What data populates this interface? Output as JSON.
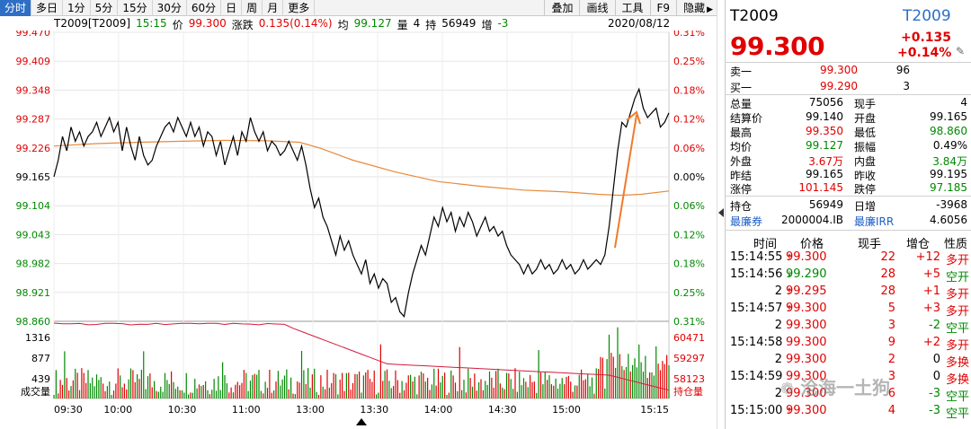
{
  "toolbar": {
    "timeframes": [
      "分时",
      "多日",
      "1分",
      "5分",
      "15分",
      "30分",
      "60分",
      "日",
      "周",
      "月",
      "更多"
    ],
    "active": "分时",
    "right": [
      "叠加",
      "画线",
      "工具",
      "F9",
      "隐藏"
    ]
  },
  "info": {
    "name": "T2009[T2009]",
    "time": "15:15",
    "price_label": "价",
    "price": "99.300",
    "change_label": "涨跌",
    "change": "0.135(0.14%)",
    "avg_label": "均",
    "avg": "99.127",
    "vol_label": "量",
    "vol": "4",
    "hold_label": "持",
    "hold": "56949",
    "inc_label": "增",
    "inc": "-3",
    "date": "2020/08/12"
  },
  "chart_data": {
    "type": "line",
    "price_ticks": [
      "99.470",
      "99.409",
      "99.348",
      "99.287",
      "99.226",
      "99.165",
      "99.104",
      "99.043",
      "98.982",
      "98.921",
      "98.860"
    ],
    "pct_ticks": [
      "0.31%",
      "0.25%",
      "0.18%",
      "0.12%",
      "0.06%",
      "0.00%",
      "0.06%",
      "0.12%",
      "0.18%",
      "0.25%",
      "0.31%"
    ],
    "vol_ticks": [
      "1316",
      "877",
      "439",
      "成交量"
    ],
    "oi_ticks": [
      "60471",
      "59297",
      "58123",
      "持仓量"
    ],
    "time_ticks": [
      "09:30",
      "10:00",
      "10:30",
      "11:00",
      "13:00",
      "13:30",
      "14:00",
      "14:30",
      "15:00",
      "15:15"
    ],
    "ylim": [
      98.86,
      99.47
    ],
    "price_series": [
      [
        0,
        99.165
      ],
      [
        2,
        99.2
      ],
      [
        4,
        99.25
      ],
      [
        6,
        99.22
      ],
      [
        8,
        99.27
      ],
      [
        10,
        99.24
      ],
      [
        12,
        99.26
      ],
      [
        14,
        99.23
      ],
      [
        16,
        99.25
      ],
      [
        18,
        99.26
      ],
      [
        20,
        99.28
      ],
      [
        22,
        99.25
      ],
      [
        24,
        99.27
      ],
      [
        26,
        99.29
      ],
      [
        28,
        99.26
      ],
      [
        30,
        99.28
      ],
      [
        32,
        99.22
      ],
      [
        34,
        99.27
      ],
      [
        36,
        99.23
      ],
      [
        38,
        99.2
      ],
      [
        40,
        99.25
      ],
      [
        42,
        99.21
      ],
      [
        44,
        99.19
      ],
      [
        46,
        99.2
      ],
      [
        48,
        99.23
      ],
      [
        50,
        99.25
      ],
      [
        52,
        99.27
      ],
      [
        54,
        99.28
      ],
      [
        56,
        99.26
      ],
      [
        58,
        99.29
      ],
      [
        60,
        99.27
      ],
      [
        62,
        99.25
      ],
      [
        64,
        99.28
      ],
      [
        66,
        99.25
      ],
      [
        68,
        99.27
      ],
      [
        70,
        99.23
      ],
      [
        72,
        99.26
      ],
      [
        74,
        99.25
      ],
      [
        76,
        99.21
      ],
      [
        78,
        99.24
      ],
      [
        80,
        99.19
      ],
      [
        82,
        99.22
      ],
      [
        84,
        99.25
      ],
      [
        86,
        99.21
      ],
      [
        88,
        99.26
      ],
      [
        90,
        99.24
      ],
      [
        92,
        99.29
      ],
      [
        94,
        99.26
      ],
      [
        96,
        99.24
      ],
      [
        98,
        99.26
      ],
      [
        100,
        99.22
      ],
      [
        102,
        99.24
      ],
      [
        104,
        99.23
      ],
      [
        106,
        99.21
      ],
      [
        108,
        99.22
      ],
      [
        110,
        99.24
      ],
      [
        112,
        99.22
      ],
      [
        114,
        99.2
      ],
      [
        116,
        99.23
      ],
      [
        118,
        99.19
      ],
      [
        120,
        99.14
      ],
      [
        122,
        99.1
      ],
      [
        124,
        99.12
      ],
      [
        126,
        99.08
      ],
      [
        128,
        99.06
      ],
      [
        130,
        99.03
      ],
      [
        132,
        99.0
      ],
      [
        134,
        99.04
      ],
      [
        136,
        99.01
      ],
      [
        138,
        99.03
      ],
      [
        140,
        99.0
      ],
      [
        142,
        98.98
      ],
      [
        144,
        98.96
      ],
      [
        146,
        98.99
      ],
      [
        148,
        98.94
      ],
      [
        150,
        98.96
      ],
      [
        152,
        98.93
      ],
      [
        154,
        98.95
      ],
      [
        156,
        98.94
      ],
      [
        158,
        98.9
      ],
      [
        160,
        98.91
      ],
      [
        162,
        98.88
      ],
      [
        164,
        98.87
      ],
      [
        166,
        98.92
      ],
      [
        168,
        98.96
      ],
      [
        170,
        98.99
      ],
      [
        172,
        99.02
      ],
      [
        174,
        99.0
      ],
      [
        176,
        99.04
      ],
      [
        178,
        99.08
      ],
      [
        180,
        99.06
      ],
      [
        182,
        99.1
      ],
      [
        184,
        99.07
      ],
      [
        186,
        99.09
      ],
      [
        188,
        99.05
      ],
      [
        190,
        99.08
      ],
      [
        192,
        99.06
      ],
      [
        194,
        99.09
      ],
      [
        196,
        99.07
      ],
      [
        198,
        99.04
      ],
      [
        200,
        99.06
      ],
      [
        202,
        99.08
      ],
      [
        204,
        99.05
      ],
      [
        206,
        99.06
      ],
      [
        208,
        99.04
      ],
      [
        210,
        99.05
      ],
      [
        212,
        99.02
      ],
      [
        214,
        99.0
      ],
      [
        216,
        98.99
      ],
      [
        218,
        98.98
      ],
      [
        220,
        98.96
      ],
      [
        222,
        98.98
      ],
      [
        224,
        98.96
      ],
      [
        226,
        98.97
      ],
      [
        228,
        98.99
      ],
      [
        230,
        98.97
      ],
      [
        232,
        98.98
      ],
      [
        234,
        98.96
      ],
      [
        236,
        98.97
      ],
      [
        238,
        98.99
      ],
      [
        240,
        98.97
      ],
      [
        242,
        98.98
      ],
      [
        244,
        98.96
      ],
      [
        246,
        98.97
      ],
      [
        248,
        98.99
      ],
      [
        250,
        98.97
      ],
      [
        252,
        98.98
      ],
      [
        254,
        98.99
      ],
      [
        256,
        98.98
      ],
      [
        258,
        99.0
      ],
      [
        260,
        99.06
      ],
      [
        262,
        99.14
      ],
      [
        264,
        99.22
      ],
      [
        266,
        99.28
      ],
      [
        268,
        99.27
      ],
      [
        270,
        99.3
      ],
      [
        272,
        99.33
      ],
      [
        274,
        99.35
      ],
      [
        276,
        99.31
      ],
      [
        278,
        99.29
      ],
      [
        280,
        99.3
      ],
      [
        282,
        99.31
      ],
      [
        284,
        99.27
      ],
      [
        286,
        99.28
      ],
      [
        288,
        99.3
      ]
    ],
    "avg_series": [
      [
        0,
        99.23
      ],
      [
        20,
        99.235
      ],
      [
        40,
        99.238
      ],
      [
        60,
        99.24
      ],
      [
        80,
        99.242
      ],
      [
        100,
        99.241
      ],
      [
        115,
        99.238
      ],
      [
        125,
        99.225
      ],
      [
        140,
        99.2
      ],
      [
        160,
        99.175
      ],
      [
        180,
        99.155
      ],
      [
        200,
        99.145
      ],
      [
        220,
        99.137
      ],
      [
        240,
        99.133
      ],
      [
        255,
        99.128
      ],
      [
        265,
        99.126
      ],
      [
        275,
        99.128
      ],
      [
        288,
        99.135
      ]
    ]
  },
  "quote": {
    "symbol": "T2009",
    "code": "T2009",
    "price": "99.300",
    "change": "+0.135",
    "pct": "+0.14%",
    "pencil_icon": "pencil-icon"
  },
  "orderbook": [
    {
      "label": "卖一",
      "price": "99.300",
      "qty": "96"
    },
    {
      "label": "买一",
      "price": "99.290",
      "qty": "3"
    }
  ],
  "stats": [
    [
      {
        "l": "总量",
        "v": "75056",
        "c": "k"
      },
      {
        "l": "现手",
        "v": "4",
        "c": "k"
      }
    ],
    [
      {
        "l": "结算价",
        "v": "99.140",
        "c": "k"
      },
      {
        "l": "开盘",
        "v": "99.165",
        "c": "k"
      }
    ],
    [
      {
        "l": "最高",
        "v": "99.350",
        "c": "r"
      },
      {
        "l": "最低",
        "v": "98.860",
        "c": "g"
      }
    ],
    [
      {
        "l": "均价",
        "v": "99.127",
        "c": "g"
      },
      {
        "l": "振幅",
        "v": "0.49%",
        "c": "k"
      }
    ],
    [
      {
        "l": "外盘",
        "v": "3.67万",
        "c": "r"
      },
      {
        "l": "内盘",
        "v": "3.84万",
        "c": "g"
      }
    ],
    [
      {
        "l": "昨结",
        "v": "99.165",
        "c": "k"
      },
      {
        "l": "昨收",
        "v": "99.195",
        "c": "k"
      }
    ],
    [
      {
        "l": "涨停",
        "v": "101.145",
        "c": "r"
      },
      {
        "l": "跌停",
        "v": "97.185",
        "c": "g"
      }
    ]
  ],
  "hold_row": [
    {
      "l": "持仓",
      "v": "56949",
      "c": "k"
    },
    {
      "l": "日增",
      "v": "-3968",
      "c": "k"
    }
  ],
  "ctd_row": [
    {
      "l": "最廉券",
      "v": "2000004.IB"
    },
    {
      "l": "最廉IRR",
      "v": "4.6056"
    }
  ],
  "trades_header": [
    "时间",
    "价格",
    "现手",
    "增仓",
    "性质"
  ],
  "trades": [
    {
      "t": "15:14:55",
      "p": "99.300",
      "d": "up",
      "q": "22",
      "i": "+12",
      "n": "多开",
      "nc": "r"
    },
    {
      "t": "15:14:56",
      "p": "99.290",
      "d": "dn",
      "q": "28",
      "i": "+5",
      "n": "空开",
      "nc": "g"
    },
    {
      "t": "2",
      "p": "99.295",
      "d": "up",
      "q": "28",
      "i": "+1",
      "n": "多开",
      "nc": "r"
    },
    {
      "t": "15:14:57",
      "p": "99.300",
      "d": "up",
      "q": "5",
      "i": "+3",
      "n": "多开",
      "nc": "r"
    },
    {
      "t": "2",
      "p": "99.300",
      "d": "",
      "q": "3",
      "i": "-2",
      "n": "空平",
      "nc": "g"
    },
    {
      "t": "15:14:58",
      "p": "99.300",
      "d": "",
      "q": "9",
      "i": "+2",
      "n": "多开",
      "nc": "r"
    },
    {
      "t": "2",
      "p": "99.300",
      "d": "",
      "q": "2",
      "i": "0",
      "n": "多换",
      "nc": "r"
    },
    {
      "t": "15:14:59",
      "p": "99.300",
      "d": "",
      "q": "3",
      "i": "0",
      "n": "多换",
      "nc": "r"
    },
    {
      "t": "2",
      "p": "99.300",
      "d": "",
      "q": "6",
      "i": "-3",
      "n": "空平",
      "nc": "g"
    },
    {
      "t": "15:15:00",
      "p": "99.300",
      "d": "up",
      "q": "4",
      "i": "-3",
      "n": "空平",
      "nc": "g"
    }
  ],
  "watermark": "沧海一土狗",
  "colors": {
    "up": "#e00000",
    "down": "#008800",
    "blue": "#1e5fc6",
    "avg": "#e8893a",
    "arrow": "#f07a2a"
  }
}
